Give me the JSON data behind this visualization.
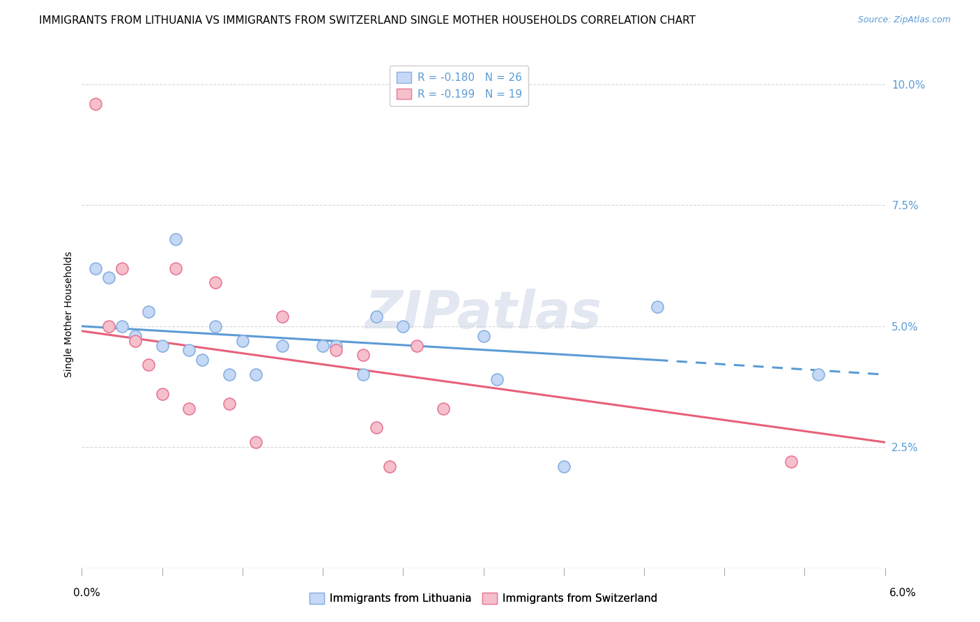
{
  "title": "IMMIGRANTS FROM LITHUANIA VS IMMIGRANTS FROM SWITZERLAND SINGLE MOTHER HOUSEHOLDS CORRELATION CHART",
  "source": "Source: ZipAtlas.com",
  "ylabel": "Single Mother Households",
  "ylabel_right_ticks": [
    "2.5%",
    "5.0%",
    "7.5%",
    "10.0%"
  ],
  "ylabel_right_vals": [
    0.025,
    0.05,
    0.075,
    0.1
  ],
  "xlim": [
    0.0,
    0.06
  ],
  "ylim": [
    0.0,
    0.105
  ],
  "scatter_lithuania": {
    "color": "#c5d8f5",
    "edge_color": "#8ab0e0",
    "x": [
      0.001,
      0.002,
      0.003,
      0.004,
      0.005,
      0.006,
      0.007,
      0.008,
      0.009,
      0.01,
      0.011,
      0.012,
      0.013,
      0.015,
      0.018,
      0.019,
      0.021,
      0.022,
      0.024,
      0.03,
      0.031,
      0.036,
      0.043,
      0.055
    ],
    "y": [
      0.062,
      0.06,
      0.05,
      0.048,
      0.053,
      0.046,
      0.068,
      0.045,
      0.043,
      0.05,
      0.04,
      0.047,
      0.04,
      0.046,
      0.046,
      0.046,
      0.04,
      0.052,
      0.05,
      0.048,
      0.039,
      0.021,
      0.054,
      0.04
    ]
  },
  "scatter_switzerland": {
    "color": "#f5c0cc",
    "edge_color": "#e87898",
    "x": [
      0.001,
      0.002,
      0.003,
      0.004,
      0.005,
      0.006,
      0.007,
      0.008,
      0.01,
      0.011,
      0.013,
      0.015,
      0.019,
      0.021,
      0.022,
      0.023,
      0.025,
      0.027,
      0.053
    ],
    "y": [
      0.096,
      0.05,
      0.062,
      0.047,
      0.042,
      0.036,
      0.062,
      0.033,
      0.059,
      0.034,
      0.026,
      0.052,
      0.045,
      0.044,
      0.029,
      0.021,
      0.046,
      0.033,
      0.022
    ]
  },
  "line_lithuania_solid": {
    "color": "#5b9bd5",
    "x": [
      0.0,
      0.043
    ],
    "y": [
      0.05,
      0.043
    ]
  },
  "line_lithuania_dashed": {
    "color": "#5b9bd5",
    "x": [
      0.043,
      0.06
    ],
    "y": [
      0.043,
      0.04
    ]
  },
  "line_switzerland": {
    "color": "#e8607a",
    "x": [
      0.0,
      0.06
    ],
    "y": [
      0.049,
      0.026
    ]
  },
  "watermark": "ZIPatlas",
  "watermark_color": "#d0d8e8",
  "background_color": "#ffffff",
  "grid_color": "#d8d8d8",
  "title_fontsize": 11,
  "source_fontsize": 9,
  "axis_label_fontsize": 10,
  "tick_fontsize": 11,
  "legend_fontsize": 11
}
